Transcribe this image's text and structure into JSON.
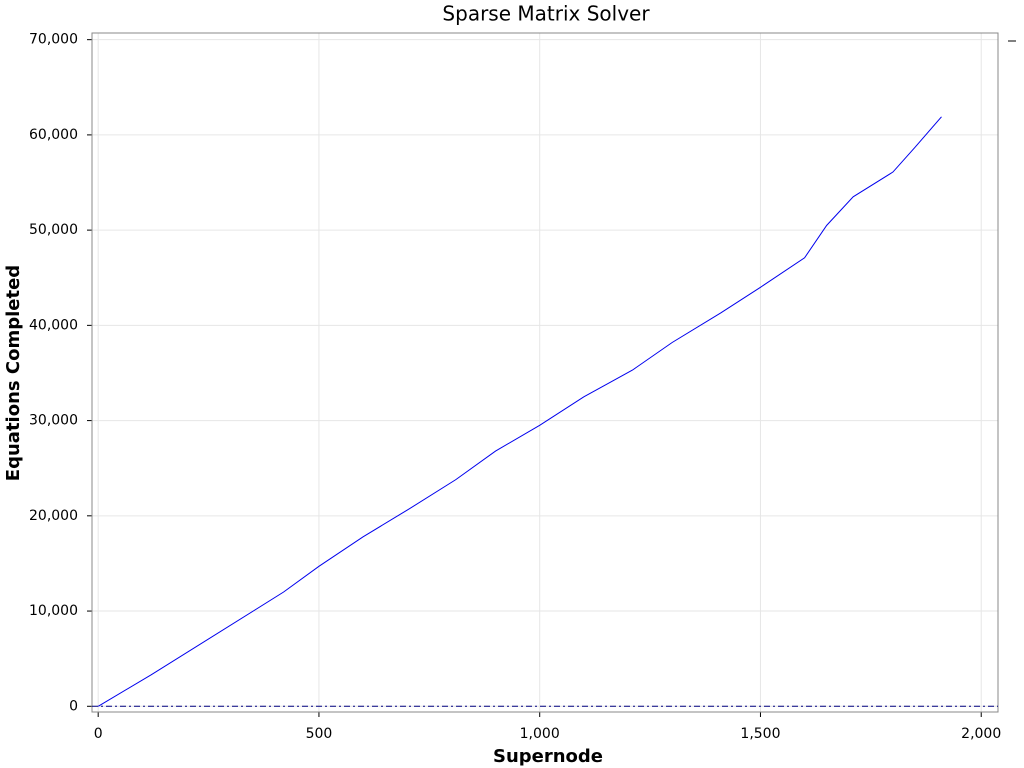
{
  "chart_data": {
    "type": "line",
    "title": "Sparse Matrix Solver",
    "x_label": "Supernode",
    "y_label": "Equations Completed",
    "x": [
      0,
      120,
      420,
      500,
      600,
      700,
      810,
      900,
      1000,
      1100,
      1210,
      1300,
      1410,
      1500,
      1600,
      1650,
      1710,
      1800,
      1850,
      1910
    ],
    "series": [
      {
        "color": "#0000ee",
        "values": [
          0,
          3300,
          12000,
          14700,
          17800,
          20600,
          23800,
          26800,
          29500,
          32500,
          35300,
          38200,
          41300,
          44000,
          47100,
          50500,
          53500,
          56100,
          58700,
          61900
        ]
      }
    ],
    "reference_line": {
      "value": 0,
      "color": "#000080"
    },
    "xlim": [
      -14,
      2038
    ],
    "ylim": [
      -600,
      70700
    ],
    "xticks": [
      0,
      500,
      {
        "value": 1000,
        "label": "1,000"
      },
      {
        "value": 1500,
        "label": "1,500"
      },
      {
        "value": 2000,
        "label": "2,000"
      }
    ],
    "yticks": [
      0,
      {
        "value": 10000,
        "label": "10,000"
      },
      {
        "value": 20000,
        "label": "20,000"
      },
      {
        "value": 30000,
        "label": "30,000"
      },
      {
        "value": 40000,
        "label": "40,000"
      },
      {
        "value": 50000,
        "label": "50,000"
      },
      {
        "value": 60000,
        "label": "60,000"
      },
      {
        "value": 70000,
        "label": "70,000"
      }
    ],
    "grid": true
  }
}
